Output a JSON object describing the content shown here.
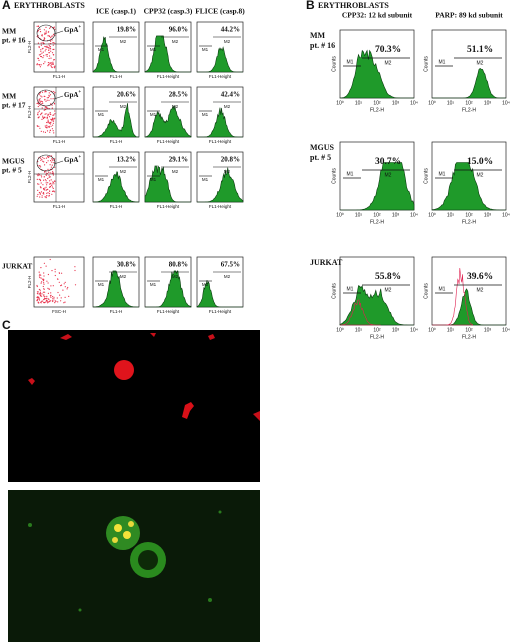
{
  "panel_a": {
    "label": "A",
    "title": "ERYTHROBLASTS",
    "columns": [
      "ICE (casp.1)",
      "CPP32 (casp.3)",
      "FLICE (casp.8)"
    ],
    "hist_axis_labels": [
      "FL1-H",
      "FL1-Height",
      "FL1-Height"
    ],
    "gate_label": "GpA",
    "gate_sup": "+",
    "scatter_y_label": "FL2-H",
    "markers": [
      "M1",
      "M2"
    ],
    "rows": [
      {
        "name": [
          "MM",
          "pt. # 16"
        ],
        "scatter_x_label": "FL1-H",
        "values": [
          "19.8%",
          "96.0%",
          "44.2%"
        ]
      },
      {
        "name": [
          "MM",
          "pt. # 17"
        ],
        "scatter_x_label": "FL1-H",
        "values": [
          "20.6%",
          "28.5%",
          "42.4%"
        ]
      },
      {
        "name": [
          "MGUS",
          "pt. # 5"
        ],
        "scatter_x_label": "FL1-H",
        "values": [
          "13.2%",
          "29.1%",
          "20.8%"
        ]
      },
      {
        "name": [
          "JURKAT"
        ],
        "scatter_x_label": "FSC-H",
        "values": [
          "30.8%",
          "80.8%",
          "67.5%"
        ]
      }
    ]
  },
  "panel_b": {
    "label": "B",
    "title": "ERYTHROBLASTS",
    "columns": [
      "CPP32: 12 kd subunit",
      "PARP: 89 kd subunit"
    ],
    "x_label": "FL2-H",
    "y_label": "Counts",
    "x_ticks": [
      "10⁰",
      "10¹",
      "10²",
      "10³",
      "10⁴"
    ],
    "markers": [
      "M1",
      "M2"
    ],
    "rows": [
      {
        "name": [
          "MM",
          "pt. # 16"
        ],
        "values": [
          "70.3%",
          "51.1%"
        ]
      },
      {
        "name": [
          "MGUS",
          "pt. # 5"
        ],
        "values": [
          "30.7%",
          "15.0%"
        ]
      },
      {
        "name": [
          "JURKAT"
        ],
        "values": [
          "55.8%",
          "39.6%"
        ]
      }
    ]
  },
  "panel_c": {
    "label": "C"
  }
}
